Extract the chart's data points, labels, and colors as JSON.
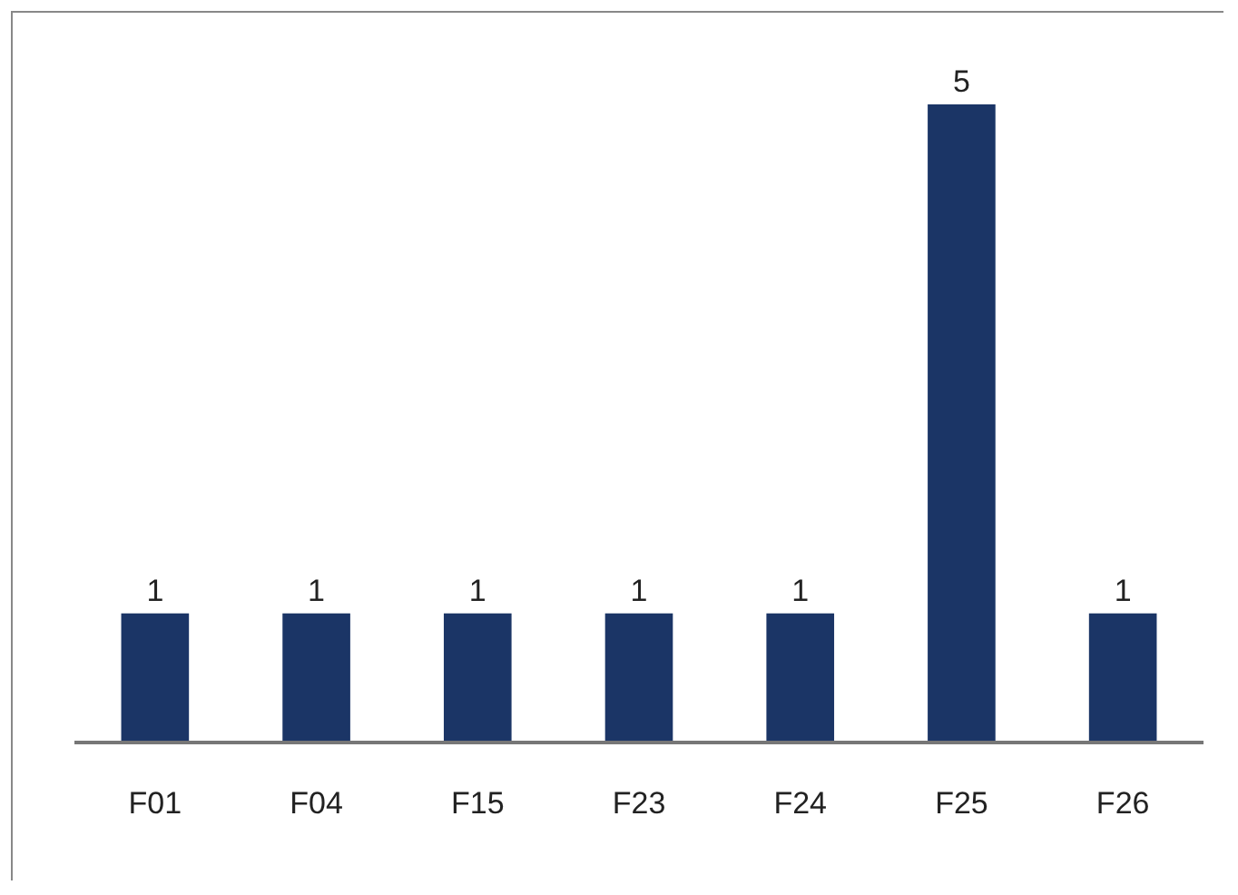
{
  "chart_data": {
    "type": "bar",
    "categories": [
      "F01",
      "F04",
      "F15",
      "F23",
      "F24",
      "F25",
      "F26"
    ],
    "values": [
      1,
      1,
      1,
      1,
      1,
      5,
      1
    ],
    "color": "#1b3566",
    "data_labels": true,
    "grid": false,
    "tick_labels": "x"
  }
}
